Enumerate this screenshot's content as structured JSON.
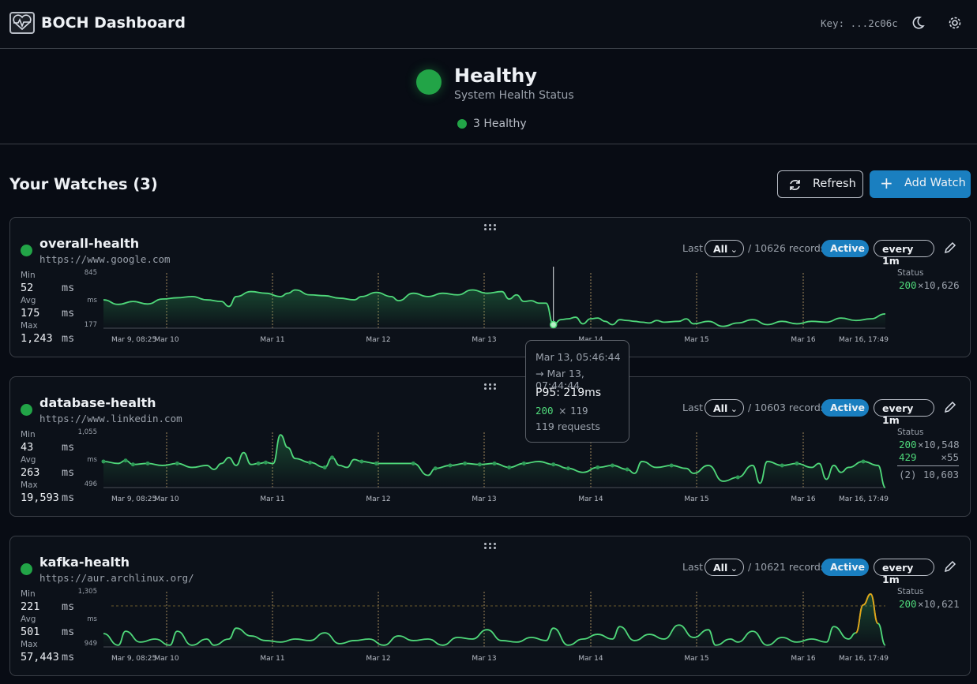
{
  "app": {
    "title": "BOCH Dashboard",
    "key_label": "Key: ...2c06c"
  },
  "health": {
    "title": "Healthy",
    "subtitle": "System Health Status",
    "count_label": "3 Healthy"
  },
  "watches": {
    "heading": "Your Watches (3)",
    "refresh_label": "Refresh",
    "add_label": "Add Watch"
  },
  "cards": [
    {
      "name": "overall-health",
      "url": "https://www.google.com",
      "min_label": "Min",
      "min": "52",
      "avg_label": "Avg",
      "avg": "175",
      "max_label": "Max",
      "max": "1,243",
      "unit": "ms",
      "last_label": "Last",
      "range": "All",
      "records": "/ 10626 records",
      "active": "Active",
      "interval": "every 1m",
      "status_label": "Status",
      "statuses": [
        {
          "code": "200",
          "count": "×10,626",
          "color": "#4fd87a"
        }
      ],
      "chart_data": {
        "type": "line",
        "y_ticks": [
          "845",
          "ms",
          "177"
        ],
        "x_ticks": [
          "Mar 9, 08:25",
          "Mar 10",
          "Mar 11",
          "Mar 12",
          "Mar 13",
          "Mar 14",
          "Mar 15",
          "Mar 16",
          "Mar 16, 17:49"
        ],
        "ylim": [
          177,
          845
        ],
        "values": [
          [
            0,
            520
          ],
          [
            2,
            465
          ],
          [
            4,
            500
          ],
          [
            6,
            470
          ],
          [
            8,
            530
          ],
          [
            10,
            545
          ],
          [
            12,
            560
          ],
          [
            14,
            520
          ],
          [
            16,
            500
          ],
          [
            17,
            440
          ],
          [
            18,
            560
          ],
          [
            20,
            620
          ],
          [
            22,
            600
          ],
          [
            24,
            560
          ],
          [
            25,
            600
          ],
          [
            26,
            640
          ],
          [
            28,
            580
          ],
          [
            30,
            570
          ],
          [
            32,
            540
          ],
          [
            34,
            520
          ],
          [
            35,
            560
          ],
          [
            37,
            610
          ],
          [
            39,
            560
          ],
          [
            40,
            510
          ],
          [
            42,
            600
          ],
          [
            44,
            560
          ],
          [
            46,
            600
          ],
          [
            48,
            580
          ],
          [
            50,
            640
          ],
          [
            52,
            600
          ],
          [
            54,
            620
          ],
          [
            55,
            530
          ],
          [
            56,
            580
          ],
          [
            57,
            500
          ],
          [
            58,
            510
          ],
          [
            59,
            480
          ],
          [
            60,
            480
          ],
          [
            61,
            220
          ],
          [
            62,
            280
          ],
          [
            63,
            290
          ],
          [
            64,
            310
          ],
          [
            65,
            230
          ],
          [
            66,
            290
          ],
          [
            67,
            300
          ],
          [
            68,
            260
          ],
          [
            69,
            220
          ],
          [
            70,
            280
          ],
          [
            71,
            270
          ],
          [
            72,
            260
          ],
          [
            73,
            250
          ],
          [
            74,
            240
          ],
          [
            75,
            270
          ],
          [
            76,
            250
          ],
          [
            78,
            260
          ],
          [
            79,
            290
          ],
          [
            80,
            230
          ],
          [
            82,
            260
          ],
          [
            84,
            200
          ],
          [
            86,
            240
          ],
          [
            88,
            280
          ],
          [
            90,
            220
          ],
          [
            92,
            260
          ],
          [
            94,
            230
          ],
          [
            96,
            260
          ],
          [
            98,
            250
          ],
          [
            100,
            300
          ],
          [
            102,
            270
          ],
          [
            104,
            290
          ],
          [
            106,
            350
          ]
        ],
        "color": "#4fd87a"
      }
    },
    {
      "name": "database-health",
      "url": "https://www.linkedin.com",
      "min_label": "Min",
      "min": "43",
      "avg_label": "Avg",
      "avg": "263",
      "max_label": "Max",
      "max": "19,593",
      "unit": "ms",
      "last_label": "Last",
      "range": "All",
      "records": "/ 10603 records",
      "active": "Active",
      "interval": "every 1m",
      "status_label": "Status",
      "statuses": [
        {
          "code": "200",
          "count": "×10,548",
          "color": "#4fd87a"
        },
        {
          "code": "429",
          "count": "×55",
          "color": "#4fd87a"
        },
        {
          "code": "(2)",
          "count": "10,603",
          "color": "#9aa1ab"
        }
      ],
      "chart_data": {
        "type": "line",
        "y_ticks": [
          "1,055",
          "ms",
          "496"
        ],
        "x_ticks": [
          "Mar 9, 08:25",
          "Mar 10",
          "Mar 11",
          "Mar 12",
          "Mar 13",
          "Mar 14",
          "Mar 15",
          "Mar 16",
          "Mar 16, 17:49"
        ],
        "ylim": [
          496,
          1055
        ],
        "values": [
          [
            0,
            760
          ],
          [
            2,
            740
          ],
          [
            3,
            770
          ],
          [
            4,
            730
          ],
          [
            6,
            740
          ],
          [
            8,
            720
          ],
          [
            10,
            740
          ],
          [
            12,
            700
          ],
          [
            14,
            720
          ],
          [
            15,
            680
          ],
          [
            16,
            740
          ],
          [
            17,
            800
          ],
          [
            18,
            720
          ],
          [
            19,
            850
          ],
          [
            20,
            730
          ],
          [
            21,
            740
          ],
          [
            22,
            750
          ],
          [
            23,
            740
          ],
          [
            24,
            1030
          ],
          [
            25,
            900
          ],
          [
            26,
            790
          ],
          [
            28,
            750
          ],
          [
            30,
            700
          ],
          [
            31,
            800
          ],
          [
            32,
            720
          ],
          [
            33,
            700
          ],
          [
            34,
            780
          ],
          [
            35,
            760
          ],
          [
            37,
            740
          ],
          [
            39,
            740
          ],
          [
            42,
            740
          ],
          [
            44,
            620
          ],
          [
            45,
            690
          ],
          [
            47,
            720
          ],
          [
            49,
            740
          ],
          [
            51,
            730
          ],
          [
            53,
            740
          ],
          [
            55,
            700
          ],
          [
            57,
            740
          ],
          [
            59,
            760
          ],
          [
            61,
            730
          ],
          [
            63,
            690
          ],
          [
            65,
            650
          ],
          [
            67,
            700
          ],
          [
            69,
            720
          ],
          [
            71,
            680
          ],
          [
            72,
            640
          ],
          [
            73,
            760
          ],
          [
            75,
            700
          ],
          [
            77,
            720
          ],
          [
            79,
            690
          ],
          [
            80,
            640
          ],
          [
            82,
            720
          ],
          [
            84,
            560
          ],
          [
            86,
            600
          ],
          [
            88,
            720
          ],
          [
            89,
            540
          ],
          [
            90,
            760
          ],
          [
            92,
            720
          ],
          [
            94,
            740
          ],
          [
            96,
            700
          ],
          [
            97,
            740
          ],
          [
            98,
            580
          ],
          [
            99,
            720
          ],
          [
            100,
            650
          ],
          [
            101,
            700
          ],
          [
            103,
            760
          ],
          [
            105,
            720
          ],
          [
            106,
            496
          ]
        ],
        "color": "#4fd87a"
      }
    },
    {
      "name": "kafka-health",
      "url": "https://aur.archlinux.org/",
      "min_label": "Min",
      "min": "221",
      "avg_label": "Avg",
      "avg": "501",
      "max_label": "Max",
      "max": "57,443",
      "unit": "ms",
      "last_label": "Last",
      "range": "All",
      "records": "/ 10621 records",
      "active": "Active",
      "interval": "every 1m",
      "status_label": "Status",
      "statuses": [
        {
          "code": "200",
          "count": "×10,621",
          "color": "#4fd87a"
        }
      ],
      "chart_data": {
        "type": "line",
        "y_ticks": [
          "1,305",
          "ms",
          "949"
        ],
        "x_ticks": [
          "Mar 9, 08:25",
          "Mar 10",
          "Mar 11",
          "Mar 12",
          "Mar 13",
          "Mar 14",
          "Mar 15",
          "Mar 16",
          "Mar 16, 17:49"
        ],
        "ylim": [
          949,
          1305
        ],
        "values": [
          [
            0,
            1035
          ],
          [
            2,
            960
          ],
          [
            3,
            1050
          ],
          [
            5,
            980
          ],
          [
            7,
            1000
          ],
          [
            9,
            960
          ],
          [
            10,
            1050
          ],
          [
            12,
            960
          ],
          [
            14,
            1000
          ],
          [
            15,
            960
          ],
          [
            17,
            1000
          ],
          [
            18,
            1070
          ],
          [
            20,
            1020
          ],
          [
            22,
            990
          ],
          [
            24,
            980
          ],
          [
            26,
            1000
          ],
          [
            28,
            990
          ],
          [
            30,
            1040
          ],
          [
            32,
            970
          ],
          [
            34,
            990
          ],
          [
            36,
            1000
          ],
          [
            38,
            960
          ],
          [
            40,
            1020
          ],
          [
            42,
            990
          ],
          [
            44,
            1000
          ],
          [
            46,
            960
          ],
          [
            48,
            1010
          ],
          [
            50,
            1000
          ],
          [
            52,
            1060
          ],
          [
            54,
            990
          ],
          [
            56,
            980
          ],
          [
            58,
            1010
          ],
          [
            60,
            990
          ],
          [
            61,
            1070
          ],
          [
            63,
            960
          ],
          [
            65,
            1000
          ],
          [
            67,
            1030
          ],
          [
            69,
            1000
          ],
          [
            70,
            1080
          ],
          [
            72,
            990
          ],
          [
            74,
            1030
          ],
          [
            76,
            1000
          ],
          [
            78,
            1090
          ],
          [
            80,
            1010
          ],
          [
            82,
            1060
          ],
          [
            83,
            960
          ],
          [
            85,
            1000
          ],
          [
            86,
            980
          ],
          [
            88,
            1050
          ],
          [
            90,
            960
          ],
          [
            92,
            1010
          ],
          [
            94,
            980
          ],
          [
            96,
            1000
          ],
          [
            98,
            980
          ],
          [
            99,
            1080
          ],
          [
            101,
            1000
          ],
          [
            102,
            1040
          ],
          [
            103,
            1220
          ],
          [
            104,
            1290
          ],
          [
            105,
            1100
          ],
          [
            106,
            960
          ]
        ],
        "color": "#4fd87a",
        "peak_color": "#e5a216"
      }
    }
  ],
  "tooltip": {
    "time_from": "Mar 13, 05:46:44",
    "time_to": "→ Mar 13, 07:44:44",
    "p95": "P95: 219ms",
    "code": "200",
    "times": "×",
    "count": "119",
    "requests": "119 requests"
  }
}
